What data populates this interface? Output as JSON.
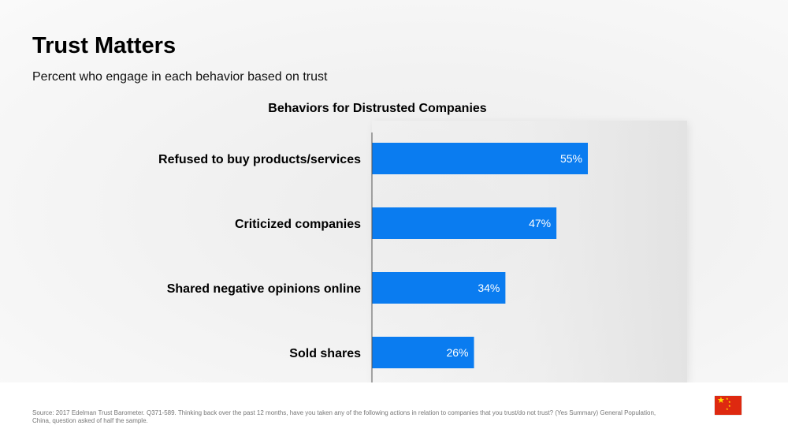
{
  "title": "Trust Matters",
  "subtitle": "Percent who engage in each behavior based on trust",
  "source": "Source: 2017 Edelman Trust Barometer. Q371-589. Thinking back over the past 12 months, have you taken any of the following actions in relation to companies that you trust/do not trust? (Yes Summary) General Population, China, question asked of half the sample.",
  "flag_icon": "china-flag-icon",
  "colors": {
    "bar": "#0a7cf0",
    "axis": "#555555",
    "text": "#000000"
  },
  "chart_data": {
    "type": "bar",
    "orientation": "horizontal",
    "title": "Behaviors for Distrusted Companies",
    "categories": [
      "Refused to buy products/services",
      "Criticized companies",
      "Shared negative opinions online",
      "Sold shares"
    ],
    "values": [
      55,
      47,
      34,
      26
    ],
    "value_labels": [
      "55%",
      "47%",
      "34%",
      "26%"
    ],
    "xlim": [
      0,
      100
    ],
    "grid": false,
    "legend": "none"
  }
}
